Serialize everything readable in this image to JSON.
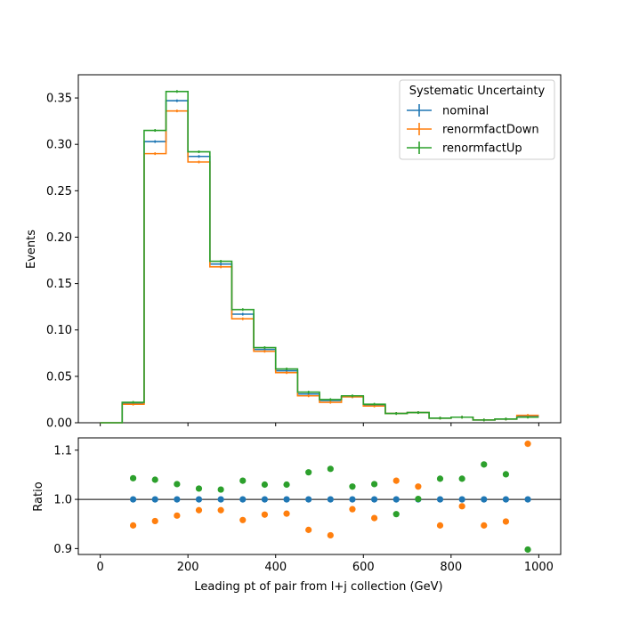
{
  "chart_data": [
    {
      "type": "step",
      "panel": "main",
      "ylabel": "Events",
      "xlim": [
        -50,
        1050
      ],
      "ylim": [
        0,
        0.375
      ],
      "yticks": [
        "0.00",
        "0.05",
        "0.10",
        "0.15",
        "0.20",
        "0.25",
        "0.30",
        "0.35"
      ],
      "ytick_values": [
        0,
        0.05,
        0.1,
        0.15,
        0.2,
        0.25,
        0.3,
        0.35
      ],
      "bin_edges": [
        0,
        50,
        100,
        150,
        200,
        250,
        300,
        350,
        400,
        450,
        500,
        550,
        600,
        650,
        700,
        750,
        800,
        850,
        900,
        950,
        1000
      ],
      "legend": {
        "title": "Systematic Uncertainty",
        "placement": "top-right"
      },
      "series": [
        {
          "name": "nominal",
          "color": "#1f77b4",
          "values": [
            0.0,
            0.021,
            0.303,
            0.347,
            0.287,
            0.171,
            0.117,
            0.079,
            0.056,
            0.031,
            0.024,
            0.028,
            0.019,
            0.01,
            0.011,
            0.005,
            0.006,
            0.003,
            0.004,
            0.007
          ]
        },
        {
          "name": "renormfactDown",
          "color": "#ff7f0e",
          "values": [
            0.0,
            0.02,
            0.29,
            0.336,
            0.281,
            0.168,
            0.112,
            0.077,
            0.054,
            0.029,
            0.022,
            0.028,
            0.018,
            0.01,
            0.011,
            0.005,
            0.006,
            0.003,
            0.004,
            0.008
          ]
        },
        {
          "name": "renormfactUp",
          "color": "#2ca02c",
          "values": [
            0.0,
            0.022,
            0.315,
            0.357,
            0.292,
            0.174,
            0.122,
            0.081,
            0.058,
            0.033,
            0.025,
            0.029,
            0.02,
            0.01,
            0.011,
            0.005,
            0.006,
            0.003,
            0.004,
            0.006
          ]
        }
      ]
    },
    {
      "type": "scatter",
      "panel": "ratio",
      "xlabel": "Leading pt of pair from l+j collection (GeV)",
      "ylabel": "Ratio",
      "xlim": [
        -50,
        1050
      ],
      "ylim": [
        0.888,
        1.125
      ],
      "xticks": [
        "0",
        "200",
        "400",
        "600",
        "800",
        "1000"
      ],
      "xtick_values": [
        0,
        200,
        400,
        600,
        800,
        1000
      ],
      "yticks": [
        "0.9",
        "1.0",
        "1.1"
      ],
      "ytick_values": [
        0.9,
        1.0,
        1.1
      ],
      "reference_line": 1.0,
      "x": [
        75,
        125,
        175,
        225,
        275,
        325,
        375,
        425,
        475,
        525,
        575,
        625,
        675,
        725,
        775,
        825,
        875,
        925,
        975
      ],
      "series": [
        {
          "name": "nominal",
          "color": "#1f77b4",
          "values": [
            1.0,
            1.0,
            1.0,
            1.0,
            1.0,
            1.0,
            1.0,
            1.0,
            1.0,
            1.0,
            1.0,
            1.0,
            1.0,
            1.0,
            1.0,
            1.0,
            1.0,
            1.0,
            1.0
          ]
        },
        {
          "name": "renormfactDown",
          "color": "#ff7f0e",
          "values": [
            0.947,
            0.956,
            0.967,
            0.978,
            0.978,
            0.958,
            0.969,
            0.971,
            0.938,
            0.927,
            0.98,
            0.962,
            1.038,
            1.026,
            0.947,
            0.986,
            0.947,
            0.955,
            1.113
          ]
        },
        {
          "name": "renormfactUp",
          "color": "#2ca02c",
          "values": [
            1.043,
            1.04,
            1.031,
            1.022,
            1.02,
            1.038,
            1.03,
            1.03,
            1.055,
            1.062,
            1.026,
            1.031,
            0.97,
            1.001,
            1.042,
            1.042,
            1.071,
            1.051,
            0.898
          ]
        }
      ]
    }
  ]
}
